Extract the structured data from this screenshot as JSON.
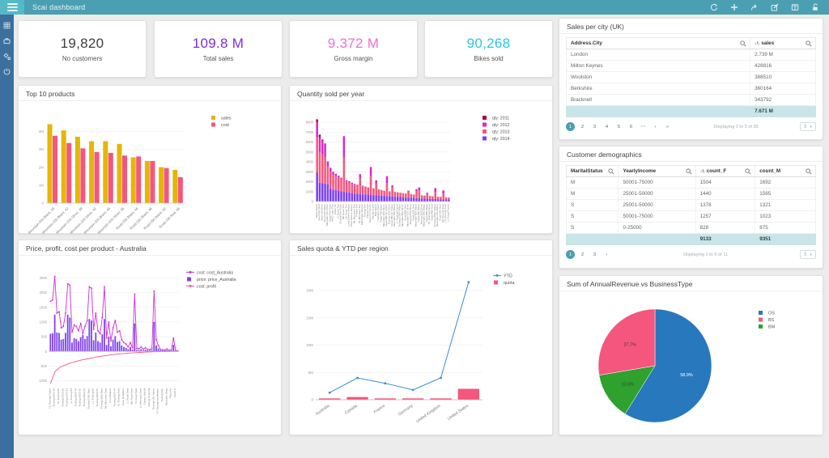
{
  "header": {
    "title": "Scai dashboard",
    "icons": [
      "refresh",
      "add",
      "share",
      "edit",
      "book",
      "unlock"
    ]
  },
  "sidebar": {
    "icons": [
      "grid",
      "briefcase",
      "cogs",
      "power"
    ]
  },
  "kpis": [
    {
      "value": "19,820",
      "label": "No customers",
      "color": "#3f3f3f"
    },
    {
      "value": "109.8 M",
      "label": "Total sales",
      "color": "#7c2be8"
    },
    {
      "value": "9.372 M",
      "label": "Gross margin",
      "color": "#ee6fd4"
    },
    {
      "value": "90,268",
      "label": "Bikes sold",
      "color": "#2cc6da"
    }
  ],
  "chart_data": [
    {
      "type": "bar",
      "title": "Top 10 products",
      "categories": [
        "Mountain-200 Black, 38",
        "Mountain-200 Black, 42",
        "Mountain-200 Silver, 38",
        "Mountain-200 Silver, 42",
        "Mountain-200 Black, 46",
        "Mountain-200 Silver, 46",
        "Road-250 Black, 44",
        "Road-250 Black, 48",
        "Road-250 Black, 52",
        "Road-150 Red, 56"
      ],
      "series": [
        {
          "name": "sales",
          "color": "#e4b605",
          "values": [
            4.4,
            4.05,
            3.7,
            3.45,
            3.45,
            3.3,
            2.55,
            2.35,
            2.0,
            1.85
          ]
        },
        {
          "name": "cost",
          "color": "#f4567d",
          "values": [
            3.75,
            3.35,
            3.05,
            2.85,
            2.8,
            2.65,
            2.6,
            2.35,
            1.95,
            1.45
          ]
        }
      ],
      "yticks": [
        0,
        1,
        2,
        3,
        4
      ],
      "ytick_labels": [
        "0",
        "1M",
        "2M",
        "3M",
        "4M"
      ],
      "ymax": 4.6,
      "legend_position": "top-right"
    },
    {
      "type": "stacked-bar",
      "title": "Quantity sold per year",
      "categories": [
        "Water Bottle",
        "Sport-100 Red",
        "Sport-100 Blue",
        "Sport-100 Black",
        "Mountain Tire Tube",
        "Road Tire Tube",
        "AWC Logo Cap",
        "Patch Kit",
        "LL Road Tire",
        "Touring Tire Tube",
        "ML Road Tire",
        "HL Road Tire",
        "Long-Sleeve Jersey",
        "Short-Sleeve Jersey",
        "ML Mountain Tire",
        "Fender Set",
        "HL Mountain Tire",
        "Half-Finger Gloves",
        "Touring Tire",
        "Classic Vest",
        "Women's Shorts",
        "Racing Socks",
        "Bike Wash",
        "Hydration Pack",
        "Road-750 Black",
        "Mountain-400 Silver",
        "Road-550-W Yellow",
        "Touring-1000 Blue",
        "Road-350-W Yellow",
        "Mountain-200 Black",
        "LL Touring Frame",
        "Touring-1000 Yellow",
        "Mountain-500 Silver",
        "Road-650 Red",
        "Mountain-100 Silver",
        "Touring-2000 Blue",
        "Road-150 Red",
        "Mountain-500 Black",
        "Road-250 Black",
        "Touring-3000 Blue",
        "Mountain-300 Black",
        "Road-650 Black",
        "HL Touring Frame",
        "Road-450 Red",
        "Touring-3000 Yellow",
        "Mountain-100 Black",
        "Road-250 Red",
        "ML Touring Seat",
        "HL Touring Seat",
        "LL Road Frame"
      ],
      "series": [
        {
          "name": "qty: 2011",
          "color": "#b00045",
          "values": [
            300,
            250,
            100,
            50,
            0,
            0,
            0,
            0,
            0,
            0,
            0,
            0,
            0,
            0,
            0,
            0,
            0,
            0,
            0,
            0,
            0,
            0,
            0,
            0,
            0,
            0,
            0,
            0,
            0,
            0,
            0,
            0,
            0,
            0,
            0,
            0,
            0,
            0,
            0,
            0,
            0,
            0,
            0,
            0,
            0,
            0,
            0,
            0,
            0,
            0
          ]
        },
        {
          "name": "qty: 2012",
          "color": "#d829c5",
          "values": [
            1500,
            1500,
            1400,
            1300,
            500,
            400,
            300,
            250,
            200,
            150,
            2100,
            100,
            150,
            100,
            80,
            60,
            400,
            50,
            40,
            30,
            900,
            20,
            300,
            15,
            10,
            10,
            700,
            10,
            200,
            10,
            10,
            10,
            10,
            10,
            100,
            10,
            10,
            200,
            300,
            10,
            10,
            100,
            10,
            10,
            400,
            10,
            10,
            300,
            10,
            10
          ]
        },
        {
          "name": "qty: 2013",
          "color": "#f4567d",
          "values": [
            3600,
            3100,
            2900,
            2700,
            1800,
            1700,
            1500,
            1400,
            1300,
            1200,
            3500,
            1100,
            1000,
            950,
            900,
            850,
            1600,
            800,
            750,
            700,
            1900,
            650,
            1200,
            600,
            550,
            500,
            1300,
            480,
            900,
            460,
            440,
            420,
            400,
            380,
            600,
            360,
            340,
            700,
            800,
            320,
            300,
            500,
            280,
            260,
            700,
            240,
            220,
            600,
            200,
            180
          ]
        },
        {
          "name": "qty: 2014",
          "color": "#7a3ef2",
          "values": [
            2900,
            1900,
            1850,
            1800,
            1750,
            1300,
            1200,
            1150,
            1100,
            1050,
            1000,
            950,
            900,
            850,
            800,
            780,
            760,
            740,
            720,
            700,
            680,
            660,
            640,
            620,
            600,
            580,
            560,
            540,
            520,
            500,
            480,
            460,
            440,
            420,
            400,
            380,
            360,
            340,
            320,
            300,
            290,
            280,
            270,
            260,
            250,
            240,
            230,
            220,
            210,
            200
          ]
        }
      ],
      "yticks": [
        0,
        1000,
        2000,
        3000,
        4000,
        5000,
        6000,
        7000,
        8000
      ],
      "ymax": 8500,
      "legend_position": "top-right"
    },
    {
      "type": "combo",
      "title": "Price, profit, cost per product - Australia",
      "categories": [
        "HL Touring Frame",
        "HL Touring 54",
        "Touring-2000 46",
        "LL Touring 50",
        "HL Touring 60",
        "Touring-1000 46",
        "Touring-1000 50",
        "Touring-2000 50",
        "Touring-1000 54",
        "Touring-1000 60",
        "LL Touring 54",
        "Touring-2000 54",
        "Touring-3000 44",
        "Touring-3000 50",
        "Touring-2000 60",
        "LL Touring 58",
        "Touring-3000 54",
        "Touring-3000 58",
        "Touring-1000 Blue",
        "Touring-1000 Yellow",
        "LL Touring 62",
        "Touring-2000 Blue",
        "Touring-3000 62",
        "LL Touring Frame",
        "Touring-3000 Blue",
        "Touring-1000 44",
        "ML Mountain Seat",
        "Rear Brakes",
        "Front Brakes",
        "Touring-3000 Yellow",
        "Touring-2000 44",
        "LL Touring Seat",
        "HL Touring Seat",
        "ML Touring Seat",
        "Rear Derailleur",
        "Front Derailleur",
        "LL Road Seat",
        "Touring Pedal",
        "ML Road Seat",
        "Touring-100 Blue",
        "HL Road Seat",
        "Chain",
        "LL Mountain Seat",
        "Classic Vest S",
        "Classic Vest M",
        "Classic Vest L",
        "Racing Socks M",
        "Racing Socks L",
        "Touring-100 Yellow",
        "ML Touring Handlebars",
        "HL Touring Handlebars",
        "Bike Wash",
        "Touring Cap",
        "Water Bottle",
        "Mountain Strap",
        "Road Strap",
        "Patch Kit",
        "Touring Panniers",
        "Socks S",
        "Socks M"
      ],
      "bar_series": {
        "name": "price: price_Australia",
        "color": "#8040f0",
        "values": [
          600,
          620,
          1250,
          640,
          630,
          400,
          420,
          630,
          1250,
          1150,
          300,
          450,
          420,
          350,
          480,
          560,
          420,
          520,
          1100,
          1050,
          380,
          640,
          350,
          300,
          580,
          1100,
          220,
          500,
          170,
          400,
          520,
          320,
          350,
          200,
          150,
          120,
          80,
          150,
          60,
          950,
          50,
          45,
          80,
          40,
          60,
          35,
          30,
          40,
          1000,
          200,
          100,
          30,
          25,
          20,
          40,
          15,
          25,
          220,
          10,
          8
        ]
      },
      "line_series": [
        {
          "name": "cost: cost_Australia",
          "color": "#cc2fd0",
          "values": [
            1700,
            1750,
            2550,
            1300,
            1350,
            800,
            850,
            1300,
            2300,
            2250,
            650,
            900,
            850,
            700,
            950,
            600,
            850,
            1050,
            2200,
            2150,
            750,
            1300,
            700,
            600,
            1150,
            2200,
            450,
            1000,
            350,
            800,
            1050,
            650,
            700,
            400,
            300,
            250,
            150,
            300,
            120,
            1950,
            100,
            90,
            150,
            80,
            120,
            70,
            60,
            80,
            2050,
            400,
            200,
            60,
            50,
            40,
            80,
            30,
            50,
            450,
            20,
            15
          ]
        },
        {
          "name": "cost: profit",
          "color": "#f4567d",
          "values": [
            -1100,
            -900,
            -700,
            -620,
            -560,
            -520,
            -490,
            -460,
            -430,
            -400,
            -380,
            -360,
            -340,
            -320,
            -300,
            -285,
            -270,
            -255,
            -240,
            -225,
            -210,
            -195,
            -180,
            -170,
            -160,
            -150,
            -140,
            -130,
            -120,
            -110,
            -100,
            -92,
            -85,
            -78,
            -72,
            -66,
            -60,
            -55,
            -50,
            -45,
            -40,
            -36,
            -32,
            -28,
            -25,
            -22,
            -19,
            -16,
            -14,
            -12,
            -10,
            -8,
            -7,
            -6,
            -5,
            -4,
            -3,
            -2,
            -1,
            0
          ]
        }
      ],
      "legend_order": [
        "cost: cost_Australia",
        "price: price_Australia",
        "cost: profit"
      ],
      "yticks": [
        -1000,
        -500,
        0,
        500,
        1000,
        1500,
        2000,
        2500
      ],
      "ylim": [
        -1150,
        2650
      ],
      "legend_position": "top-right"
    },
    {
      "type": "combo",
      "title": "Sales quota & YTD per region",
      "categories": [
        "Australia",
        "Canada",
        "France",
        "Germany",
        "United Kingdom",
        "United States"
      ],
      "line_series": {
        "name": "YTD",
        "color": "#3b8bd0",
        "values": [
          1.3,
          4.0,
          3.0,
          1.8,
          4.0,
          21.5
        ]
      },
      "bar_series": {
        "name": "quota",
        "color": "#f4567d",
        "values": [
          0.25,
          0.5,
          0.25,
          0.25,
          0.25,
          2.0
        ]
      },
      "yticks": [
        0,
        5,
        10,
        15,
        20
      ],
      "ytick_labels": [
        "0",
        "5M",
        "10M",
        "15M",
        "20M"
      ],
      "ymax": 22.5,
      "unit": "M",
      "legend_position": "top-right"
    },
    {
      "type": "pie",
      "title": "Sum of AnnualRevenue vs BusinessType",
      "slices": [
        {
          "label": "OS",
          "value": 58.9,
          "pct_label": "58.9%",
          "color": "#2878be"
        },
        {
          "label": "BS",
          "value": 27.7,
          "pct_label": "27.7%",
          "color": "#f4567d"
        },
        {
          "label": "BM",
          "value": 13.5,
          "pct_label": "13.5%",
          "color": "#2ea12e"
        }
      ],
      "clockwise_order": [
        0,
        2,
        1
      ],
      "legend_position": "top-right"
    }
  ],
  "tables": [
    {
      "title": "Sales per city (UK)",
      "columns": [
        {
          "label": "Address.City",
          "sort": false,
          "search": true
        },
        {
          "label": "sales",
          "sort": true,
          "search": true
        }
      ],
      "widths": [
        74,
        26
      ],
      "rows": [
        [
          "London",
          "2.739 M"
        ],
        [
          "Milton Keynes",
          "428816"
        ],
        [
          "Woolston",
          "388510"
        ],
        [
          "Berkshire",
          "360164"
        ],
        [
          "Bracknell",
          "343792"
        ]
      ],
      "summary": [
        "",
        "7.671 M"
      ],
      "pagination": {
        "pages": [
          "1",
          "2",
          "3",
          "4",
          "5",
          "6",
          "⋯",
          "›",
          "»"
        ],
        "active": "1",
        "status": "Displaying 1 to 5 of 35",
        "page_size": "5"
      }
    },
    {
      "title": "Customer demographics",
      "columns": [
        {
          "label": "MaritalStatus",
          "sort": false,
          "search": true
        },
        {
          "label": "YearlyIncome",
          "sort": false,
          "search": true
        },
        {
          "label": "count_F",
          "sort": true,
          "search": true
        },
        {
          "label": "count_M",
          "sort": false,
          "search": true
        }
      ],
      "widths": [
        21,
        31,
        24,
        24
      ],
      "rows": [
        [
          "M",
          "50001-75000",
          "1504",
          "1692"
        ],
        [
          "M",
          "25001-50000",
          "1440",
          "1565"
        ],
        [
          "S",
          "25001-50000",
          "1378",
          "1321"
        ],
        [
          "S",
          "50001-75000",
          "1257",
          "1023"
        ],
        [
          "S",
          "0-25000",
          "828",
          "875"
        ]
      ],
      "summary": [
        "",
        "",
        "9133",
        "9351"
      ],
      "pagination": {
        "pages": [
          "1",
          "2",
          "3",
          "›"
        ],
        "active": "1",
        "status": "Displaying 1 to 5 of 11",
        "page_size": "5"
      }
    }
  ],
  "icons": {
    "sort_numeric": "↓f₁",
    "select_caret": "▾"
  }
}
